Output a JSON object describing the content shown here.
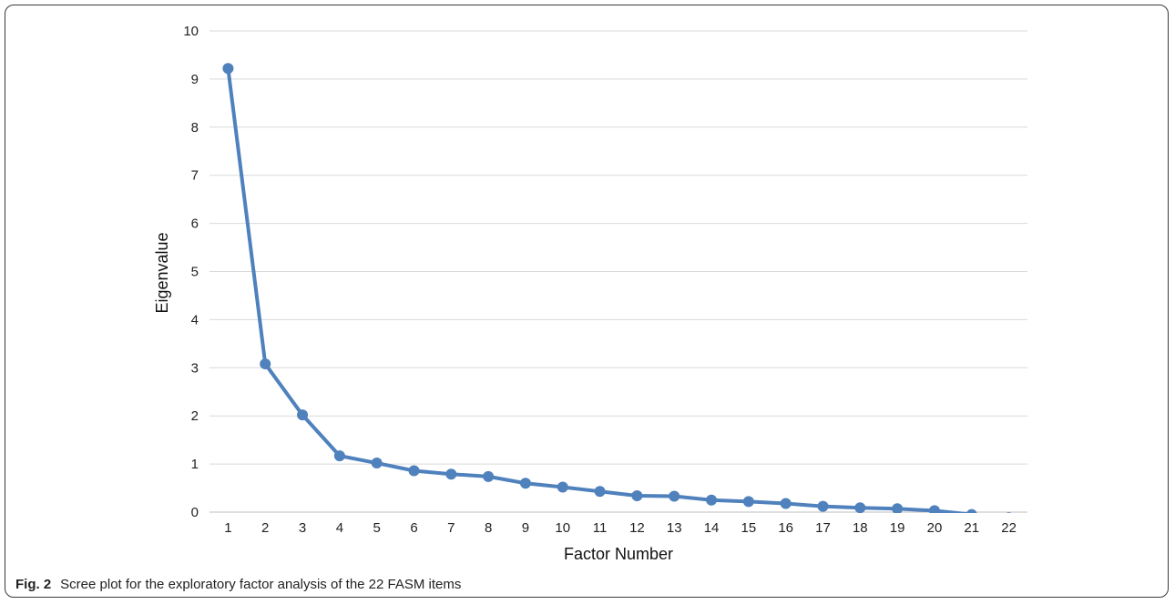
{
  "chart_data": {
    "type": "line",
    "title": "",
    "xlabel": "Factor Number",
    "ylabel": "Eigenvalue",
    "ylim": [
      0,
      10
    ],
    "yticks": [
      0,
      1,
      2,
      3,
      4,
      5,
      6,
      7,
      8,
      9,
      10
    ],
    "categories": [
      "1",
      "2",
      "3",
      "4",
      "5",
      "6",
      "7",
      "8",
      "9",
      "10",
      "11",
      "12",
      "13",
      "14",
      "15",
      "16",
      "17",
      "18",
      "19",
      "20",
      "21",
      "22"
    ],
    "series": [
      {
        "values": [
          9.22,
          3.08,
          2.02,
          1.17,
          1.02,
          0.86,
          0.79,
          0.74,
          0.6,
          0.52,
          0.43,
          0.34,
          0.33,
          0.25,
          0.22,
          0.18,
          0.12,
          0.09,
          0.07,
          0.03,
          -0.05,
          -0.12
        ],
        "color": "#4f81bd"
      }
    ],
    "grid": true
  },
  "caption": {
    "label": "Fig. 2",
    "text": "Scree plot for the exploratory factor analysis of the 22 FASM items"
  }
}
